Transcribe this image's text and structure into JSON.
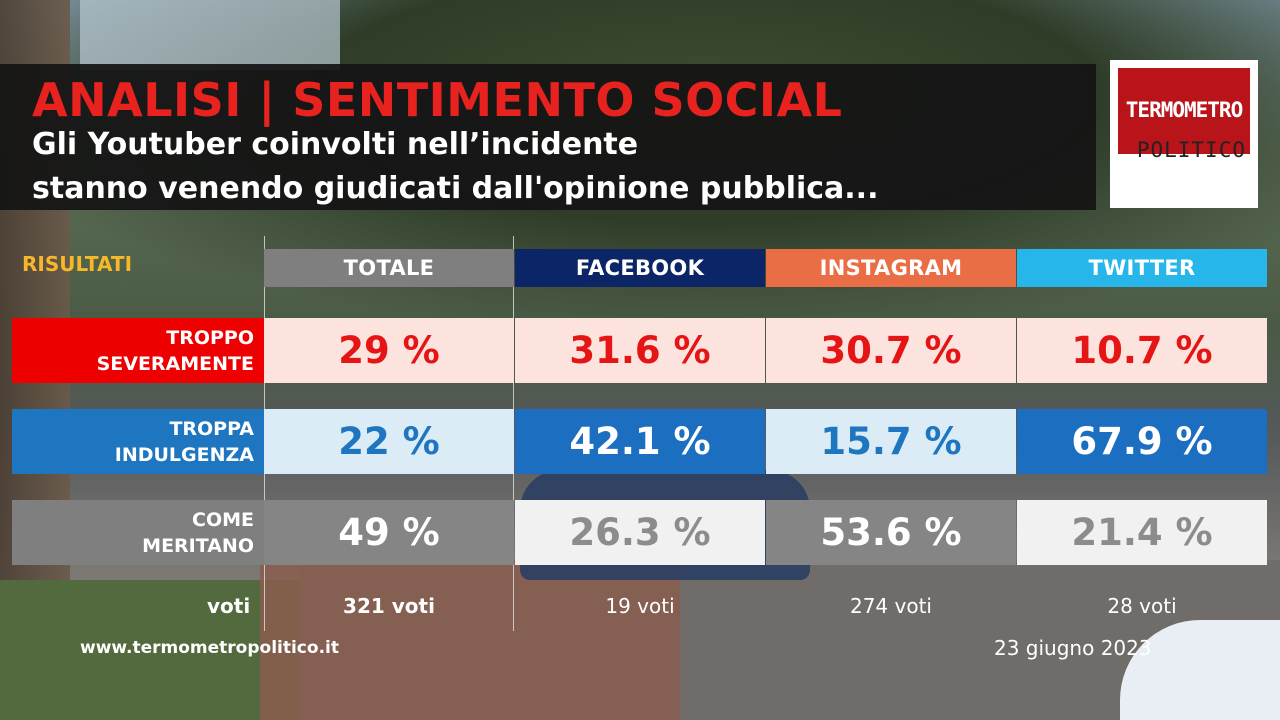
{
  "header": {
    "title": "ANALISI | SENTIMENTO SOCIAL",
    "subtitle_line1": "Gli Youtuber coinvolti nell’incidente",
    "subtitle_line2": "stanno venendo giudicati dall'opinione pubblica..."
  },
  "logo": {
    "line1": "TERMOMETRO",
    "line2": "POLITICO"
  },
  "chart_data": {
    "type": "table",
    "section_label": "RISULTATI",
    "columns": [
      {
        "label": "TOTALE",
        "color": "#7f7f7f"
      },
      {
        "label": "FACEBOOK",
        "color": "#0b2566"
      },
      {
        "label": "INSTAGRAM",
        "color": "#ea6e45"
      },
      {
        "label": "TWITTER",
        "color": "#27b6ea"
      }
    ],
    "rows": [
      {
        "label_line1": "TROPPO",
        "label_line2": "SEVERAMENTE",
        "label_bg": "#ee0000",
        "values": [
          29,
          31.6,
          30.7,
          10.7
        ],
        "display": [
          "29 %",
          "31.6 %",
          "30.7 %",
          "10.7 %"
        ],
        "cell_bg": "#fce3dd",
        "cell_fg": "#e51515"
      },
      {
        "label_line1": "TROPPA",
        "label_line2": "INDULGENZA",
        "label_bg": "#1e75c0",
        "values": [
          22,
          42.1,
          15.7,
          67.9
        ],
        "display": [
          "22 %",
          "42.1 %",
          "15.7 %",
          "67.9 %"
        ],
        "cell_bg_light": "#dcecf6",
        "cell_fg_light": "#1e75c0",
        "cell_bg_dark": "#1b6ec0",
        "cell_fg_dark": "#ffffff"
      },
      {
        "label_line1": "COME",
        "label_line2": "MERITANO",
        "label_bg": "#7f7f7f",
        "values": [
          49,
          26.3,
          53.6,
          21.4
        ],
        "display": [
          "49 %",
          "26.3 %",
          "53.6 %",
          "21.4 %"
        ],
        "cell_bg_light": "#f1f1f1",
        "cell_fg_light": "#8c8c8c",
        "cell_bg_dark": "#858585",
        "cell_fg_dark": "#ffffff"
      }
    ],
    "votes_label": "voti",
    "votes": [
      "321 voti",
      "19 voti",
      "274 voti",
      "28 voti"
    ]
  },
  "footer": {
    "url": "www.termometropolitico.it",
    "date": "23 giugno 2023"
  },
  "colors": {
    "title_red": "#e8231f",
    "accent_yellow": "#f6b72a",
    "banner_bg": "#141414"
  }
}
